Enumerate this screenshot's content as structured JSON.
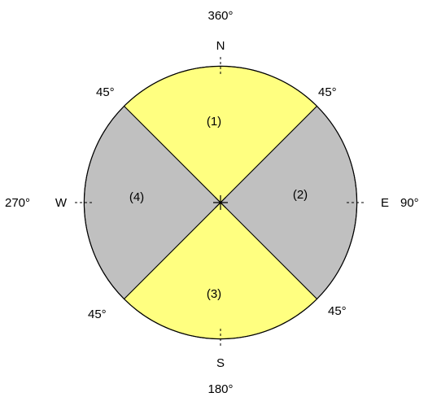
{
  "colors": {
    "background": "#ffffff",
    "north_south_sectors": "#ffff80",
    "east_west_sectors": "#c0c0c0",
    "outline": "#000000"
  },
  "degrees": {
    "north": "360°",
    "east": "90°",
    "south": "180°",
    "west": "270°",
    "north_east": "45°",
    "south_east": "45°",
    "south_west": "45°",
    "north_west": "45°"
  },
  "compass": {
    "north": "N",
    "east": "E",
    "south": "S",
    "west": "W"
  },
  "sectors": {
    "north": "(1)",
    "east": "(2)",
    "south": "(3)",
    "west": "(4)"
  },
  "icons": {
    "center": "center-asterisk-icon"
  }
}
